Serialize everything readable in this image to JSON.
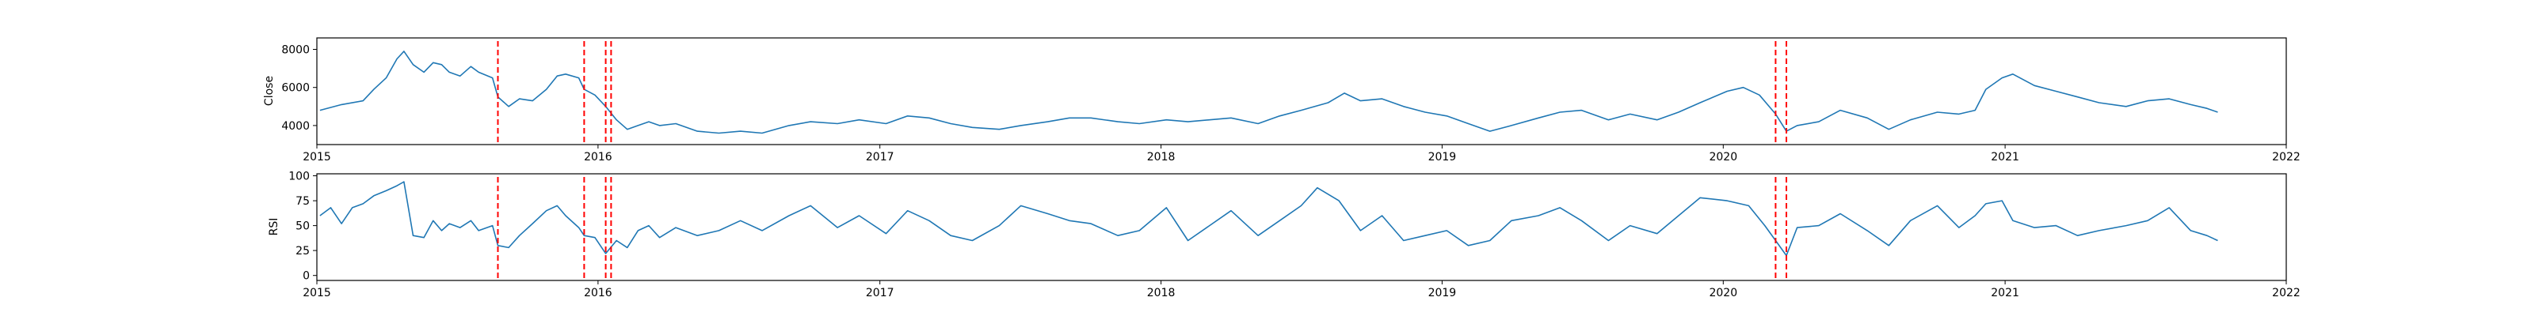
{
  "chart_data": [
    {
      "type": "line",
      "ylabel": "Close",
      "xlim": [
        "2015-01-01",
        "2022-01-01"
      ],
      "ylim": [
        3000,
        8600
      ],
      "x_ticks": [
        "2015",
        "2016",
        "2017",
        "2018",
        "2019",
        "2020",
        "2021",
        "2022"
      ],
      "y_ticks": [
        4000,
        6000,
        8000
      ],
      "series_color": "#1f77b4",
      "event_color": "#ff0000",
      "event_dates": [
        "2015-08-24",
        "2015-12-14",
        "2016-01-11",
        "2016-01-18",
        "2020-03-09",
        "2020-03-23"
      ],
      "series": [
        {
          "points": [
            [
              "2015-01-05",
              4800
            ],
            [
              "2015-02-02",
              5100
            ],
            [
              "2015-03-02",
              5300
            ],
            [
              "2015-03-16",
              5900
            ],
            [
              "2015-04-01",
              6500
            ],
            [
              "2015-04-15",
              7500
            ],
            [
              "2015-04-24",
              7900
            ],
            [
              "2015-05-06",
              7200
            ],
            [
              "2015-05-20",
              6800
            ],
            [
              "2015-06-01",
              7300
            ],
            [
              "2015-06-12",
              7200
            ],
            [
              "2015-06-22",
              6800
            ],
            [
              "2015-07-06",
              6600
            ],
            [
              "2015-07-20",
              7100
            ],
            [
              "2015-07-30",
              6800
            ],
            [
              "2015-08-17",
              6500
            ],
            [
              "2015-08-24",
              5500
            ],
            [
              "2015-09-07",
              5000
            ],
            [
              "2015-09-21",
              5400
            ],
            [
              "2015-10-08",
              5300
            ],
            [
              "2015-10-26",
              5900
            ],
            [
              "2015-11-09",
              6600
            ],
            [
              "2015-11-20",
              6700
            ],
            [
              "2015-12-07",
              6500
            ],
            [
              "2015-12-14",
              5900
            ],
            [
              "2015-12-28",
              5600
            ],
            [
              "2016-01-11",
              5000
            ],
            [
              "2016-01-25",
              4300
            ],
            [
              "2016-02-08",
              3800
            ],
            [
              "2016-02-22",
              4000
            ],
            [
              "2016-03-07",
              4200
            ],
            [
              "2016-03-21",
              4000
            ],
            [
              "2016-04-11",
              4100
            ],
            [
              "2016-05-09",
              3700
            ],
            [
              "2016-06-06",
              3600
            ],
            [
              "2016-07-04",
              3700
            ],
            [
              "2016-08-01",
              3600
            ],
            [
              "2016-09-05",
              4000
            ],
            [
              "2016-10-03",
              4200
            ],
            [
              "2016-11-07",
              4100
            ],
            [
              "2016-12-05",
              4300
            ],
            [
              "2017-01-09",
              4100
            ],
            [
              "2017-02-06",
              4500
            ],
            [
              "2017-03-06",
              4400
            ],
            [
              "2017-04-03",
              4100
            ],
            [
              "2017-05-01",
              3900
            ],
            [
              "2017-06-05",
              3800
            ],
            [
              "2017-07-03",
              4000
            ],
            [
              "2017-08-07",
              4200
            ],
            [
              "2017-09-04",
              4400
            ],
            [
              "2017-10-02",
              4400
            ],
            [
              "2017-11-06",
              4200
            ],
            [
              "2017-12-04",
              4100
            ],
            [
              "2018-01-08",
              4300
            ],
            [
              "2018-02-05",
              4200
            ],
            [
              "2018-03-05",
              4300
            ],
            [
              "2018-04-02",
              4400
            ],
            [
              "2018-05-07",
              4100
            ],
            [
              "2018-06-04",
              4500
            ],
            [
              "2018-07-02",
              4800
            ],
            [
              "2018-08-06",
              5200
            ],
            [
              "2018-08-27",
              5700
            ],
            [
              "2018-09-17",
              5300
            ],
            [
              "2018-10-15",
              5400
            ],
            [
              "2018-11-12",
              5000
            ],
            [
              "2018-12-10",
              4700
            ],
            [
              "2019-01-07",
              4500
            ],
            [
              "2019-02-04",
              4100
            ],
            [
              "2019-03-04",
              3700
            ],
            [
              "2019-04-01",
              4000
            ],
            [
              "2019-05-06",
              4400
            ],
            [
              "2019-06-03",
              4700
            ],
            [
              "2019-07-01",
              4800
            ],
            [
              "2019-08-05",
              4300
            ],
            [
              "2019-09-02",
              4600
            ],
            [
              "2019-10-07",
              4300
            ],
            [
              "2019-11-04",
              4700
            ],
            [
              "2019-12-02",
              5200
            ],
            [
              "2020-01-06",
              5800
            ],
            [
              "2020-01-27",
              6000
            ],
            [
              "2020-02-17",
              5600
            ],
            [
              "2020-03-09",
              4600
            ],
            [
              "2020-03-23",
              3700
            ],
            [
              "2020-04-06",
              4000
            ],
            [
              "2020-05-04",
              4200
            ],
            [
              "2020-06-01",
              4800
            ],
            [
              "2020-07-06",
              4400
            ],
            [
              "2020-08-03",
              3800
            ],
            [
              "2020-08-31",
              4300
            ],
            [
              "2020-10-05",
              4700
            ],
            [
              "2020-11-02",
              4600
            ],
            [
              "2020-11-23",
              4800
            ],
            [
              "2020-12-07",
              5900
            ],
            [
              "2020-12-28",
              6500
            ],
            [
              "2021-01-11",
              6700
            ],
            [
              "2021-02-08",
              6100
            ],
            [
              "2021-03-08",
              5800
            ],
            [
              "2021-04-05",
              5500
            ],
            [
              "2021-05-03",
              5200
            ],
            [
              "2021-06-07",
              5000
            ],
            [
              "2021-07-05",
              5300
            ],
            [
              "2021-08-02",
              5400
            ],
            [
              "2021-08-30",
              5100
            ],
            [
              "2021-09-20",
              4900
            ],
            [
              "2021-10-04",
              4700
            ]
          ]
        }
      ]
    },
    {
      "type": "line",
      "ylabel": "RSI",
      "xlim": [
        "2015-01-01",
        "2022-01-01"
      ],
      "ylim": [
        -5,
        102
      ],
      "x_ticks": [
        "2015",
        "2016",
        "2017",
        "2018",
        "2019",
        "2020",
        "2021",
        "2022"
      ],
      "y_ticks": [
        0,
        25,
        50,
        75,
        100
      ],
      "series_color": "#1f77b4",
      "event_color": "#ff0000",
      "event_dates": [
        "2015-08-24",
        "2015-12-14",
        "2016-01-11",
        "2016-01-18",
        "2020-03-09",
        "2020-03-23"
      ],
      "series": [
        {
          "points": [
            [
              "2015-01-05",
              60
            ],
            [
              "2015-01-19",
              68
            ],
            [
              "2015-02-02",
              52
            ],
            [
              "2015-02-16",
              68
            ],
            [
              "2015-03-02",
              72
            ],
            [
              "2015-03-16",
              80
            ],
            [
              "2015-04-01",
              85
            ],
            [
              "2015-04-15",
              90
            ],
            [
              "2015-04-24",
              94
            ],
            [
              "2015-05-06",
              40
            ],
            [
              "2015-05-20",
              38
            ],
            [
              "2015-06-01",
              55
            ],
            [
              "2015-06-12",
              45
            ],
            [
              "2015-06-22",
              52
            ],
            [
              "2015-07-06",
              48
            ],
            [
              "2015-07-20",
              55
            ],
            [
              "2015-07-30",
              45
            ],
            [
              "2015-08-17",
              50
            ],
            [
              "2015-08-24",
              30
            ],
            [
              "2015-09-07",
              28
            ],
            [
              "2015-09-21",
              40
            ],
            [
              "2015-10-08",
              52
            ],
            [
              "2015-10-26",
              65
            ],
            [
              "2015-11-09",
              70
            ],
            [
              "2015-11-20",
              60
            ],
            [
              "2015-12-07",
              48
            ],
            [
              "2015-12-14",
              40
            ],
            [
              "2015-12-28",
              38
            ],
            [
              "2016-01-11",
              22
            ],
            [
              "2016-01-25",
              35
            ],
            [
              "2016-02-08",
              28
            ],
            [
              "2016-02-22",
              45
            ],
            [
              "2016-03-07",
              50
            ],
            [
              "2016-03-21",
              38
            ],
            [
              "2016-04-11",
              48
            ],
            [
              "2016-05-09",
              40
            ],
            [
              "2016-06-06",
              45
            ],
            [
              "2016-07-04",
              55
            ],
            [
              "2016-08-01",
              45
            ],
            [
              "2016-09-05",
              60
            ],
            [
              "2016-10-03",
              70
            ],
            [
              "2016-11-07",
              48
            ],
            [
              "2016-12-05",
              60
            ],
            [
              "2017-01-09",
              42
            ],
            [
              "2017-02-06",
              65
            ],
            [
              "2017-03-06",
              55
            ],
            [
              "2017-04-03",
              40
            ],
            [
              "2017-05-01",
              35
            ],
            [
              "2017-06-05",
              50
            ],
            [
              "2017-07-03",
              70
            ],
            [
              "2017-08-07",
              62
            ],
            [
              "2017-09-04",
              55
            ],
            [
              "2017-10-02",
              52
            ],
            [
              "2017-11-06",
              40
            ],
            [
              "2017-12-04",
              45
            ],
            [
              "2018-01-08",
              68
            ],
            [
              "2018-02-05",
              35
            ],
            [
              "2018-03-05",
              50
            ],
            [
              "2018-04-02",
              65
            ],
            [
              "2018-05-07",
              40
            ],
            [
              "2018-06-04",
              55
            ],
            [
              "2018-07-02",
              70
            ],
            [
              "2018-07-23",
              88
            ],
            [
              "2018-08-20",
              75
            ],
            [
              "2018-09-17",
              45
            ],
            [
              "2018-10-15",
              60
            ],
            [
              "2018-11-12",
              35
            ],
            [
              "2018-12-10",
              40
            ],
            [
              "2019-01-07",
              45
            ],
            [
              "2019-02-04",
              30
            ],
            [
              "2019-03-04",
              35
            ],
            [
              "2019-04-01",
              55
            ],
            [
              "2019-05-06",
              60
            ],
            [
              "2019-06-03",
              68
            ],
            [
              "2019-07-01",
              55
            ],
            [
              "2019-08-05",
              35
            ],
            [
              "2019-09-02",
              50
            ],
            [
              "2019-10-07",
              42
            ],
            [
              "2019-11-04",
              60
            ],
            [
              "2019-12-02",
              78
            ],
            [
              "2020-01-06",
              75
            ],
            [
              "2020-02-03",
              70
            ],
            [
              "2020-02-24",
              50
            ],
            [
              "2020-03-09",
              35
            ],
            [
              "2020-03-23",
              20
            ],
            [
              "2020-04-06",
              48
            ],
            [
              "2020-05-04",
              50
            ],
            [
              "2020-06-01",
              62
            ],
            [
              "2020-07-06",
              45
            ],
            [
              "2020-08-03",
              30
            ],
            [
              "2020-08-31",
              55
            ],
            [
              "2020-10-05",
              70
            ],
            [
              "2020-11-02",
              48
            ],
            [
              "2020-11-23",
              60
            ],
            [
              "2020-12-07",
              72
            ],
            [
              "2020-12-28",
              75
            ],
            [
              "2021-01-11",
              55
            ],
            [
              "2021-02-08",
              48
            ],
            [
              "2021-03-08",
              50
            ],
            [
              "2021-04-05",
              40
            ],
            [
              "2021-05-03",
              45
            ],
            [
              "2021-06-07",
              50
            ],
            [
              "2021-07-05",
              55
            ],
            [
              "2021-08-02",
              68
            ],
            [
              "2021-08-30",
              45
            ],
            [
              "2021-09-20",
              40
            ],
            [
              "2021-10-04",
              35
            ]
          ]
        }
      ]
    }
  ]
}
